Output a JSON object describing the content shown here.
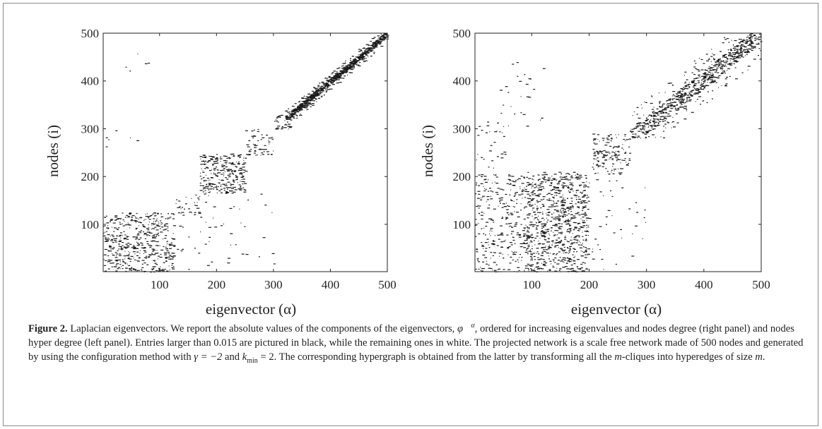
{
  "chart_data": [
    {
      "type": "scatter",
      "panel": "left",
      "xlabel": "eigenvector (α)",
      "ylabel": "nodes (i)",
      "xlim": [
        1,
        500
      ],
      "ylim": [
        1,
        500
      ],
      "xticks": [
        100,
        200,
        300,
        400,
        500
      ],
      "yticks": [
        100,
        200,
        300,
        400,
        500
      ],
      "grid": false,
      "marker_color": "#1a1a1a",
      "blocks": [
        {
          "x": [
            1,
            125
          ],
          "y": [
            1,
            125
          ],
          "density": 0.55
        },
        {
          "x": [
            170,
            250
          ],
          "y": [
            165,
            248
          ],
          "density": 0.75
        },
        {
          "x": [
            125,
            170
          ],
          "y": [
            120,
            165
          ],
          "density": 0.25
        },
        {
          "x": [
            250,
            300
          ],
          "y": [
            245,
            300
          ],
          "density": 0.35
        },
        {
          "x": [
            300,
            330
          ],
          "y": [
            300,
            330
          ],
          "density": 0.6
        },
        {
          "x": [
            320,
            500
          ],
          "y": [
            320,
            500
          ],
          "density": 0.5,
          "diagonal_width": 18
        },
        {
          "x": [
            1,
            60
          ],
          "y": [
            260,
            300
          ],
          "density": 0.05
        },
        {
          "x": [
            40,
            80
          ],
          "y": [
            420,
            460
          ],
          "density": 0.05
        },
        {
          "x": [
            130,
            300
          ],
          "y": [
            1,
            165
          ],
          "density": 0.03
        }
      ]
    },
    {
      "type": "scatter",
      "panel": "right",
      "xlabel": "eigenvector (α)",
      "ylabel": "nodes (i)",
      "xlim": [
        1,
        500
      ],
      "ylim": [
        1,
        500
      ],
      "xticks": [
        100,
        200,
        300,
        400,
        500
      ],
      "yticks": [
        100,
        200,
        300,
        400,
        500
      ],
      "grid": false,
      "marker_color": "#1a1a1a",
      "blocks": [
        {
          "x": [
            1,
            195
          ],
          "y": [
            1,
            205
          ],
          "density": 0.28
        },
        {
          "x": [
            90,
            200
          ],
          "y": [
            1,
            210
          ],
          "density": 0.35
        },
        {
          "x": [
            205,
            270
          ],
          "y": [
            205,
            290
          ],
          "density": 0.45
        },
        {
          "x": [
            270,
            500
          ],
          "y": [
            280,
            500
          ],
          "density": 0.3,
          "diagonal_width": 55
        },
        {
          "x": [
            1,
            60
          ],
          "y": [
            200,
            320
          ],
          "density": 0.08
        },
        {
          "x": [
            40,
            120
          ],
          "y": [
            300,
            440
          ],
          "density": 0.04
        },
        {
          "x": [
            200,
            300
          ],
          "y": [
            1,
            200
          ],
          "density": 0.03
        }
      ]
    }
  ],
  "caption": {
    "label": "Figure 2.",
    "part1": "Laplacian eigenvectors. We report the absolute values of the components of the eigenvectors,",
    "phi_symbol": "φ⃗",
    "phi_superscript": "α",
    "part2": ", ordered for increasing eigenvalues and nodes degree (right panel) and nodes hyper degree (left panel). Entries larger than 0.015 are pictured in black, while the remaining ones in white. The projected network is a scale free network made of 500 nodes and generated by using the configuration method with",
    "gamma_expr": "γ = −2",
    "and_word": "and",
    "k_symbol": "k",
    "k_subscript": "min",
    "k_value": "= 2",
    "part3": ". The corresponding hypergraph is obtained from the latter by transforming all the",
    "m1": "m",
    "part4": "-cliques into hyperedges of size",
    "m2": "m",
    "end": "."
  }
}
